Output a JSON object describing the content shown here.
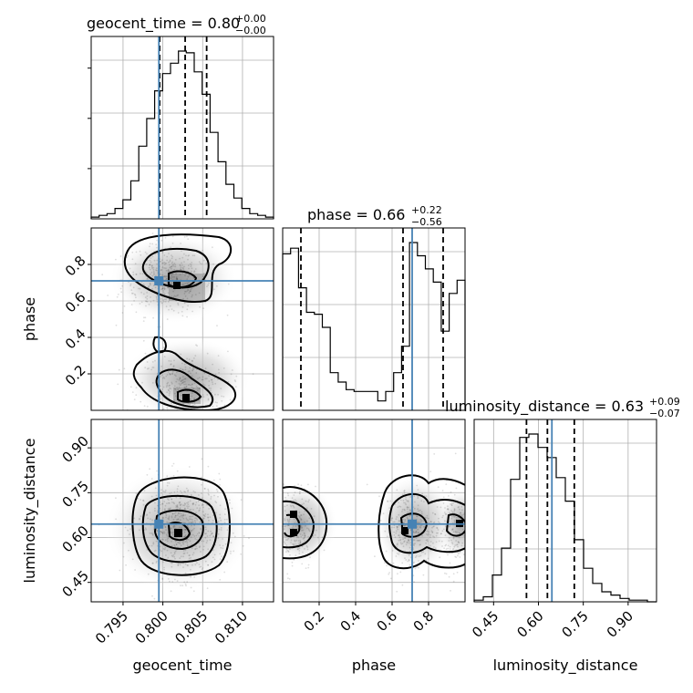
{
  "chart_data": {
    "type": "corner",
    "parameters": [
      "geocent_time",
      "phase",
      "luminosity_distance"
    ],
    "truths": {
      "geocent_time": 0.7995,
      "phase": 0.71,
      "luminosity_distance": 0.645
    },
    "ranges": {
      "geocent_time": [
        0.791,
        0.8139
      ],
      "phase": [
        0.0,
        1.0
      ],
      "luminosity_distance": [
        0.385,
        0.995
      ]
    },
    "titles": {
      "geocent_time": {
        "name": "geocent_time",
        "median": "0.80",
        "plus": "+0.00",
        "minus": "−0.00"
      },
      "phase": {
        "name": "phase",
        "median": "0.66",
        "plus": "+0.22",
        "minus": "−0.56"
      },
      "luminosity_distance": {
        "name": "luminosity_distance",
        "median": "0.63",
        "plus": "+0.09",
        "minus": "−0.07"
      }
    },
    "axis_labels": {
      "x": [
        "geocent_time",
        "phase",
        "luminosity_distance"
      ],
      "y": [
        "phase",
        "luminosity_distance"
      ]
    },
    "ticks": {
      "geocent_time": {
        "values": [
          0.795,
          0.8,
          0.805,
          0.81
        ],
        "labels": [
          "0.795",
          "0.800",
          "0.805",
          "0.810"
        ]
      },
      "phase": {
        "values": [
          0.2,
          0.4,
          0.6,
          0.8
        ],
        "labels": [
          "0.2",
          "0.4",
          "0.6",
          "0.8"
        ]
      },
      "luminosity_distance": {
        "values": [
          0.45,
          0.6,
          0.75,
          0.9
        ],
        "labels": [
          "0.45",
          "0.60",
          "0.75",
          "0.90"
        ]
      }
    },
    "quantiles": {
      "geocent_time": [
        0.7996,
        0.8028,
        0.8055
      ],
      "phase": [
        0.1,
        0.66,
        0.88
      ],
      "luminosity_distance": [
        0.56,
        0.63,
        0.72
      ]
    },
    "histograms": {
      "geocent_time": [
        1,
        2,
        3,
        6,
        11,
        22,
        42,
        58,
        74,
        84,
        90,
        97,
        96,
        85,
        72,
        50,
        33,
        20,
        12,
        6,
        3,
        2,
        1
      ],
      "phase": [
        83,
        86,
        65,
        52,
        51,
        44,
        20,
        15,
        11,
        10,
        10,
        10,
        5,
        10,
        20,
        34,
        89,
        82,
        75,
        68,
        42,
        62,
        69
      ],
      "luminosity_distance": [
        1,
        3,
        16,
        32,
        73,
        98,
        100,
        92,
        86,
        74,
        60,
        37,
        20,
        11,
        6,
        4,
        2,
        1,
        1,
        0
      ]
    },
    "truth_color": "#4682b4",
    "grid": true
  }
}
